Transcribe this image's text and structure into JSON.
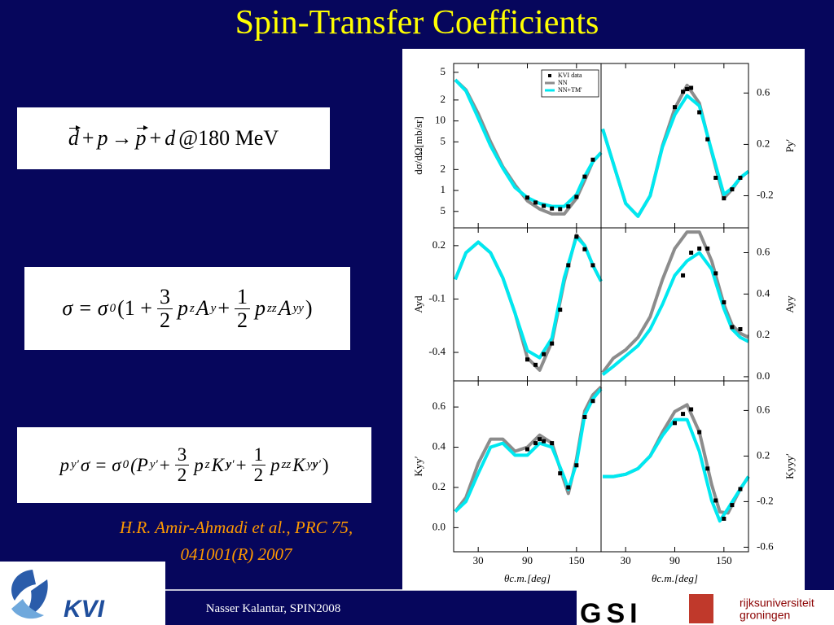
{
  "title": "Spin-Transfer Coefficients",
  "equations": [
    {
      "parts": [
        "d",
        "+",
        "p",
        "→",
        "p",
        "+",
        "d",
        "@180 MeV"
      ]
    },
    {
      "parts": [
        "σ = σ",
        "0",
        "(1 +",
        "3",
        "2",
        "p",
        "z",
        "A",
        "y",
        "+",
        "1",
        "2",
        "p",
        "zz",
        "A",
        "yy",
        ")"
      ]
    },
    {
      "parts": [
        "p",
        "y′",
        "σ = σ",
        "0",
        "(P",
        "y′",
        "+",
        "3",
        "2",
        "p",
        "z",
        "K",
        "y",
        "y′",
        "+",
        "1",
        "2",
        "p",
        "zz",
        "K",
        "yy",
        "y′",
        ")"
      ]
    }
  ],
  "citation": [
    "H.R. Amir-Ahmadi et al., PRC 75,",
    "041001(R) 2007"
  ],
  "footer": "Nasser Kalantar, SPIN2008",
  "logos": {
    "kvi": "KVI",
    "gsi": "GSI",
    "groningen": [
      "rijksuniversiteit",
      "groningen"
    ]
  },
  "chart_data": [
    {
      "type": "line",
      "ylabel": "dσ/dΩ[mb/sr]",
      "log_y": true,
      "yaxis_side": "left",
      "legend": "upper right",
      "xlim": [
        0,
        180
      ],
      "xticks": [
        30,
        90,
        150
      ],
      "ylim": [
        0.29,
        67
      ],
      "yticks": [
        {
          "value": 50,
          "label": "5"
        },
        {
          "value": 20,
          "label": "2"
        },
        10,
        {
          "value": 5,
          "label": "5"
        },
        {
          "value": 2,
          "label": "2"
        },
        1,
        {
          "value": 0.5,
          "label": "5"
        }
      ],
      "points": {
        "name": "KVI data",
        "color": "#000000",
        "x": [
          90,
          100,
          110,
          120,
          130,
          140,
          150,
          160,
          170
        ],
        "values": [
          0.79,
          0.67,
          0.6,
          0.55,
          0.54,
          0.59,
          0.81,
          1.58,
          2.77
        ]
      },
      "series": [
        {
          "name": "NN",
          "color": "#8c8c8c",
          "x": [
            2,
            15,
            30,
            45,
            60,
            75,
            90,
            105,
            120,
            135,
            150,
            160,
            170,
            180
          ],
          "values": [
            39,
            28,
            12.7,
            5.0,
            2.2,
            1.2,
            0.71,
            0.54,
            0.46,
            0.46,
            0.77,
            1.4,
            2.6,
            3.5
          ]
        },
        {
          "name": "NN+TM'",
          "color": "#00e8f0",
          "x": [
            2,
            15,
            30,
            45,
            60,
            75,
            90,
            105,
            120,
            135,
            150,
            160,
            170,
            180
          ],
          "values": [
            39,
            27,
            11,
            4.4,
            2.1,
            1.1,
            0.79,
            0.65,
            0.59,
            0.59,
            0.87,
            1.6,
            2.6,
            3.5
          ]
        }
      ]
    },
    {
      "type": "line",
      "ylabel": "Py′",
      "yaxis_side": "right",
      "xlim": [
        0,
        180
      ],
      "xticks": [
        30,
        90,
        150
      ],
      "ylim": [
        -0.45,
        0.83
      ],
      "yticks": [
        0.6,
        0.2,
        -0.2
      ],
      "points": {
        "color": "#000000",
        "x": [
          90,
          100,
          105,
          110,
          120,
          130,
          140,
          150,
          160,
          170
        ],
        "values": [
          0.49,
          0.61,
          0.63,
          0.64,
          0.45,
          0.24,
          -0.06,
          -0.22,
          -0.15,
          -0.06
        ]
      },
      "series": [
        {
          "color": "#8c8c8c",
          "x": [
            2,
            15,
            30,
            45,
            60,
            75,
            90,
            105,
            120,
            135,
            150,
            160,
            170,
            180
          ],
          "values": [
            0.32,
            0.05,
            -0.26,
            -0.36,
            -0.2,
            0.19,
            0.48,
            0.66,
            0.52,
            0.14,
            -0.22,
            -0.15,
            -0.06,
            -0.01
          ]
        },
        {
          "color": "#00e8f0",
          "x": [
            2,
            15,
            30,
            45,
            60,
            75,
            90,
            105,
            120,
            135,
            150,
            160,
            170,
            180
          ],
          "values": [
            0.32,
            0.05,
            -0.26,
            -0.36,
            -0.2,
            0.18,
            0.43,
            0.58,
            0.5,
            0.15,
            -0.19,
            -0.14,
            -0.06,
            -0.01
          ]
        }
      ]
    },
    {
      "type": "line",
      "ylabel": "Ayd",
      "yaxis_side": "left",
      "xlim": [
        0,
        180
      ],
      "xticks": [
        30,
        90,
        150
      ],
      "ylim": [
        -0.56,
        0.3
      ],
      "yticks": [
        0.2,
        -0.1,
        -0.4
      ],
      "points": {
        "color": "#000000",
        "x": [
          90,
          100,
          110,
          120,
          130,
          140,
          150,
          160,
          170
        ],
        "values": [
          -0.44,
          -0.47,
          -0.41,
          -0.35,
          -0.16,
          0.09,
          0.25,
          0.18,
          0.09
        ]
      },
      "series": [
        {
          "color": "#8c8c8c",
          "x": [
            2,
            15,
            30,
            45,
            60,
            75,
            90,
            105,
            120,
            135,
            150,
            160,
            170,
            180
          ],
          "values": [
            0.01,
            0.16,
            0.22,
            0.16,
            0.02,
            -0.18,
            -0.43,
            -0.5,
            -0.34,
            0.0,
            0.26,
            0.2,
            0.09,
            0.0
          ]
        },
        {
          "color": "#00e8f0",
          "x": [
            2,
            15,
            30,
            45,
            60,
            75,
            90,
            105,
            120,
            135,
            150,
            160,
            170,
            180
          ],
          "values": [
            0.01,
            0.16,
            0.22,
            0.16,
            0.02,
            -0.18,
            -0.39,
            -0.43,
            -0.32,
            0.02,
            0.25,
            0.2,
            0.09,
            0.0
          ]
        }
      ]
    },
    {
      "type": "line",
      "ylabel": "Ayy",
      "yaxis_side": "right",
      "xlim": [
        0,
        180
      ],
      "xticks": [
        30,
        90,
        150
      ],
      "ylim": [
        -0.02,
        0.72
      ],
      "yticks": [
        0.6,
        0.4,
        0.2,
        {
          "value": 0,
          "label": "0.0"
        }
      ],
      "points": {
        "color": "#000000",
        "x": [
          100,
          110,
          120,
          130,
          140,
          150,
          160,
          170
        ],
        "values": [
          0.49,
          0.6,
          0.62,
          0.62,
          0.5,
          0.36,
          0.24,
          0.23
        ]
      },
      "series": [
        {
          "color": "#8c8c8c",
          "x": [
            2,
            15,
            30,
            45,
            60,
            75,
            90,
            105,
            120,
            135,
            150,
            160,
            170,
            180
          ],
          "values": [
            0.02,
            0.09,
            0.13,
            0.19,
            0.29,
            0.47,
            0.62,
            0.7,
            0.7,
            0.56,
            0.35,
            0.25,
            0.21,
            0.19
          ]
        },
        {
          "color": "#00e8f0",
          "x": [
            2,
            15,
            30,
            45,
            60,
            75,
            90,
            105,
            120,
            135,
            150,
            160,
            170,
            180
          ],
          "values": [
            0.01,
            0.05,
            0.1,
            0.15,
            0.23,
            0.35,
            0.49,
            0.56,
            0.6,
            0.52,
            0.33,
            0.23,
            0.19,
            0.17
          ]
        }
      ]
    },
    {
      "type": "line",
      "ylabel": "Kyy′",
      "xlabel": "θc.m.[deg]",
      "yaxis_side": "left",
      "xlim": [
        0,
        180
      ],
      "xticks": [
        30,
        90,
        150
      ],
      "ylim": [
        -0.12,
        0.73
      ],
      "yticks": [
        0.6,
        0.4,
        0.2,
        {
          "value": 0,
          "label": "0.0"
        }
      ],
      "points": {
        "color": "#000000",
        "x": [
          90,
          100,
          105,
          110,
          120,
          130,
          140,
          150,
          160,
          170
        ],
        "values": [
          0.39,
          0.42,
          0.44,
          0.43,
          0.42,
          0.27,
          0.2,
          0.31,
          0.55,
          0.63
        ]
      },
      "series": [
        {
          "color": "#8c8c8c",
          "x": [
            2,
            15,
            30,
            45,
            60,
            75,
            90,
            105,
            120,
            135,
            140,
            150,
            160,
            170,
            180
          ],
          "values": [
            0.08,
            0.15,
            0.32,
            0.44,
            0.44,
            0.38,
            0.4,
            0.46,
            0.42,
            0.23,
            0.17,
            0.34,
            0.58,
            0.66,
            0.7
          ]
        },
        {
          "color": "#00e8f0",
          "x": [
            2,
            15,
            30,
            45,
            60,
            75,
            90,
            105,
            120,
            135,
            140,
            150,
            160,
            170,
            180
          ],
          "values": [
            0.08,
            0.13,
            0.27,
            0.4,
            0.42,
            0.36,
            0.36,
            0.42,
            0.4,
            0.25,
            0.19,
            0.32,
            0.56,
            0.64,
            0.69
          ]
        }
      ]
    },
    {
      "type": "line",
      "ylabel": "Kyyy′",
      "xlabel": "θc.m.[deg]",
      "yaxis_side": "right",
      "xlim": [
        0,
        180
      ],
      "xticks": [
        30,
        90,
        150
      ],
      "ylim": [
        -0.64,
        0.86
      ],
      "yticks": [
        0.6,
        0.2,
        -0.2,
        -0.6
      ],
      "points": {
        "color": "#000000",
        "x": [
          90,
          100,
          110,
          120,
          130,
          140,
          150,
          160,
          170
        ],
        "values": [
          0.49,
          0.57,
          0.61,
          0.41,
          0.09,
          -0.19,
          -0.35,
          -0.23,
          -0.09
        ]
      },
      "series": [
        {
          "color": "#8c8c8c",
          "x": [
            2,
            15,
            30,
            45,
            60,
            75,
            90,
            105,
            120,
            135,
            145,
            155,
            170,
            180
          ],
          "values": [
            0.02,
            0.02,
            0.04,
            0.09,
            0.2,
            0.41,
            0.59,
            0.65,
            0.41,
            -0.05,
            -0.29,
            -0.3,
            -0.09,
            0.02
          ]
        },
        {
          "color": "#00e8f0",
          "x": [
            2,
            15,
            30,
            45,
            60,
            75,
            90,
            105,
            120,
            135,
            145,
            155,
            170,
            180
          ],
          "values": [
            0.02,
            0.02,
            0.04,
            0.09,
            0.2,
            0.38,
            0.52,
            0.52,
            0.24,
            -0.19,
            -0.37,
            -0.26,
            -0.09,
            0.02
          ]
        }
      ]
    }
  ]
}
